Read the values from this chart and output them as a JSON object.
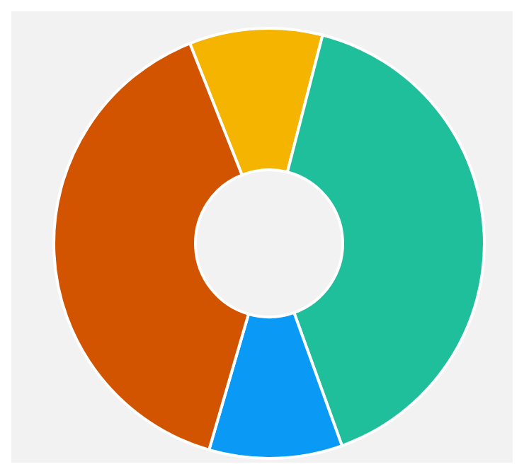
{
  "chart_data": {
    "type": "donut",
    "categories": [
      null,
      null,
      null,
      null
    ],
    "values": [
      10,
      40.5,
      10,
      39.5
    ],
    "colors": [
      "#f5b400",
      "#1fbf9c",
      "#0a9af5",
      "#d35400"
    ],
    "legend": false
  }
}
